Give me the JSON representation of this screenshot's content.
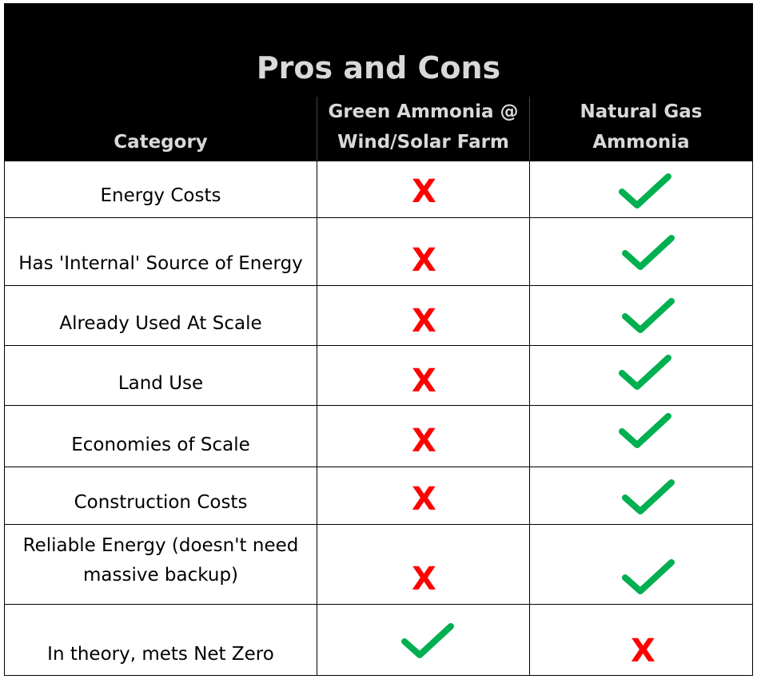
{
  "title": "Pros and Cons",
  "headers": {
    "category": "Category",
    "green_line1": "Green Ammonia @",
    "green_line2": "Wind/Solar Farm",
    "gas": "Natural Gas Ammonia"
  },
  "marks": {
    "cross": "X"
  },
  "colors": {
    "check": "#00b050",
    "cross": "#ff0000",
    "header_bg": "#000000",
    "header_text": "#d9d9d9"
  },
  "rows": [
    {
      "category": "Energy Costs",
      "green": "cross",
      "gas": "check"
    },
    {
      "category": "Has 'Internal' Source of Energy",
      "green": "cross",
      "gas": "check"
    },
    {
      "category": "Already Used At Scale",
      "green": "cross",
      "gas": "check"
    },
    {
      "category": "Land Use",
      "green": "cross",
      "gas": "check"
    },
    {
      "category": "Economies of Scale",
      "green": "cross",
      "gas": "check"
    },
    {
      "category": "Construction Costs",
      "green": "cross",
      "gas": "check"
    },
    {
      "category_line1": "Reliable Energy (doesn't need",
      "category_line2": "massive backup)",
      "green": "cross",
      "gas": "check"
    },
    {
      "category": "In theory, mets Net Zero",
      "green": "check",
      "gas": "cross"
    }
  ]
}
